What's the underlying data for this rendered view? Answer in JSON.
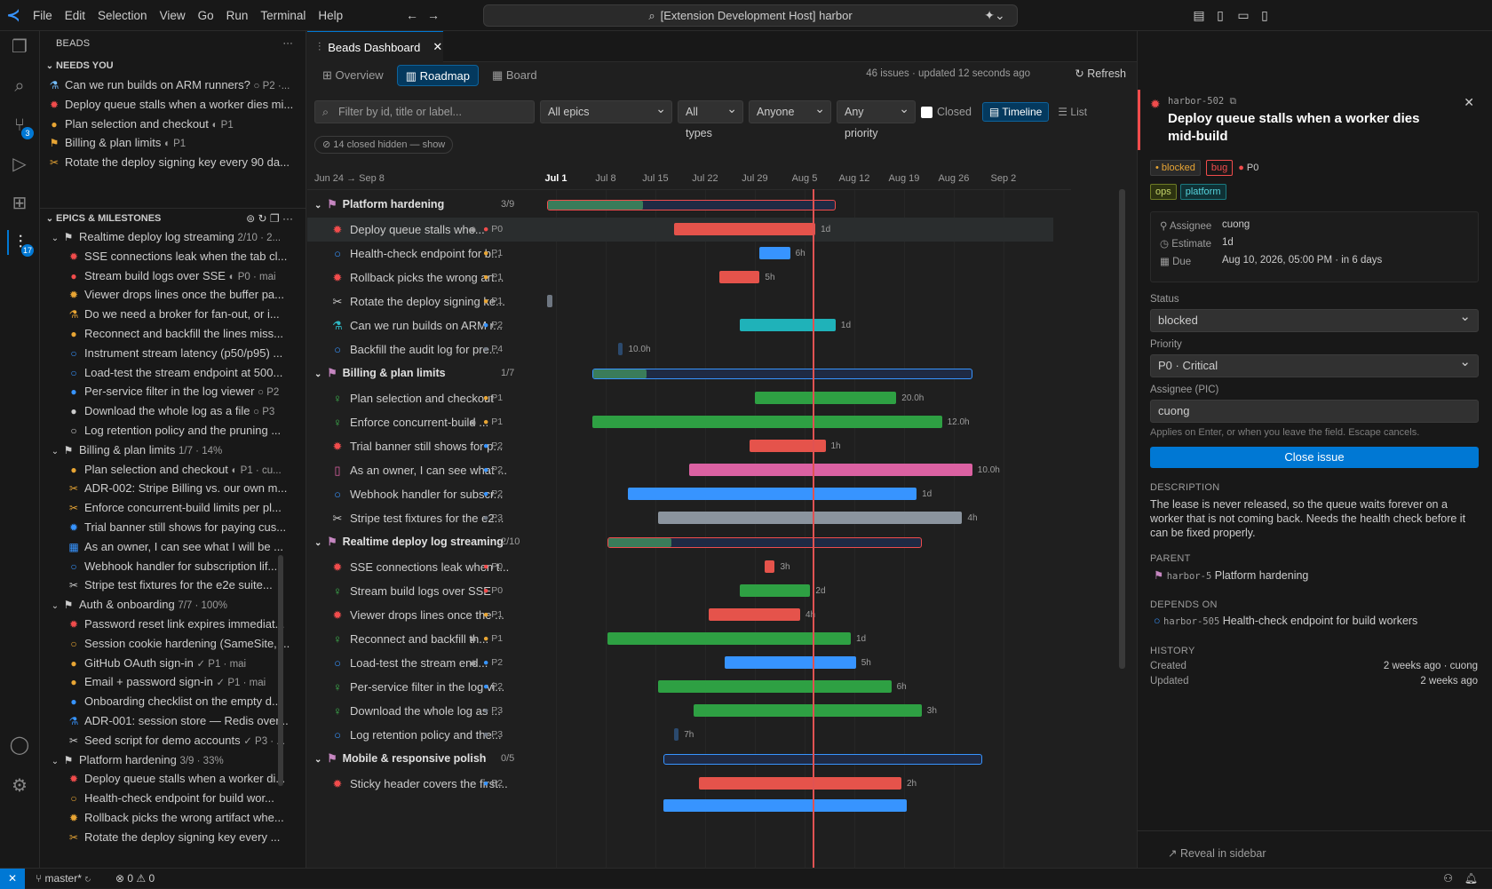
{
  "menu": [
    "File",
    "Edit",
    "Selection",
    "View",
    "Go",
    "Run",
    "Terminal",
    "Help"
  ],
  "command_center": "[Extension Development Host] harbor",
  "activity_badges": {
    "scm": "3",
    "beads": "17"
  },
  "sidebar": {
    "title": "BEADS",
    "needs_you_header": "NEEDS YOU",
    "needs_you": [
      {
        "icon": "⚗",
        "color": "#75beff",
        "text": "Can we run builds on ARM runners?",
        "meta": "○ P2 ·..."
      },
      {
        "icon": "✹",
        "color": "#f14c4c",
        "text": "Deploy queue stalls when a worker dies mi...",
        "meta": ""
      },
      {
        "icon": "●",
        "color": "#e8a534",
        "text": "Plan selection and checkout",
        "meta": "◐ P1"
      },
      {
        "icon": "⚑",
        "color": "#e8a534",
        "text": "Billing & plan limits",
        "meta": "◐ P1"
      },
      {
        "icon": "✂",
        "color": "#e8a534",
        "text": "Rotate the deploy signing key every 90 da...",
        "meta": ""
      }
    ],
    "epics_header": "EPICS & MILESTONES",
    "epics": [
      {
        "kind": "epic",
        "text": "Realtime deploy log streaming",
        "meta": "2/10 · 2..."
      },
      {
        "kind": "item",
        "icon": "✹",
        "color": "#f14c4c",
        "text": "SSE connections leak when the tab cl..."
      },
      {
        "kind": "item",
        "icon": "●",
        "color": "#f14c4c",
        "text": "Stream build logs over SSE",
        "meta": "◐ P0 · mai"
      },
      {
        "kind": "item",
        "icon": "✹",
        "color": "#e8a534",
        "text": "Viewer drops lines once the buffer pa..."
      },
      {
        "kind": "item",
        "icon": "⚗",
        "color": "#e8a534",
        "text": "Do we need a broker for fan-out, or i..."
      },
      {
        "kind": "item",
        "icon": "●",
        "color": "#e8a534",
        "text": "Reconnect and backfill the lines miss..."
      },
      {
        "kind": "item",
        "icon": "○",
        "color": "#3794ff",
        "text": "Instrument stream latency (p50/p95) ..."
      },
      {
        "kind": "item",
        "icon": "○",
        "color": "#3794ff",
        "text": "Load-test the stream endpoint at 500..."
      },
      {
        "kind": "item",
        "icon": "●",
        "color": "#3794ff",
        "text": "Per-service filter in the log viewer",
        "meta": "○ P2"
      },
      {
        "kind": "item",
        "icon": "●",
        "color": "#cccccc",
        "text": "Download the whole log as a file",
        "meta": "○ P3"
      },
      {
        "kind": "item",
        "icon": "○",
        "color": "#cccccc",
        "text": "Log retention policy and the pruning ..."
      },
      {
        "kind": "epic",
        "text": "Billing & plan limits",
        "meta": "1/7 · 14%"
      },
      {
        "kind": "item",
        "icon": "●",
        "color": "#e8a534",
        "text": "Plan selection and checkout",
        "meta": "◐ P1 · cu..."
      },
      {
        "kind": "item",
        "icon": "✂",
        "color": "#e8a534",
        "text": "ADR-002: Stripe Billing vs. our own m..."
      },
      {
        "kind": "item",
        "icon": "✂",
        "color": "#e8a534",
        "text": "Enforce concurrent-build limits per pl..."
      },
      {
        "kind": "item",
        "icon": "✹",
        "color": "#3794ff",
        "text": "Trial banner still shows for paying cus..."
      },
      {
        "kind": "item",
        "icon": "▦",
        "color": "#3794ff",
        "text": "As an owner, I can see what I will be ..."
      },
      {
        "kind": "item",
        "icon": "○",
        "color": "#3794ff",
        "text": "Webhook handler for subscription lif..."
      },
      {
        "kind": "item",
        "icon": "✂",
        "color": "#cccccc",
        "text": "Stripe test fixtures for the e2e suite..."
      },
      {
        "kind": "epic",
        "text": "Auth & onboarding",
        "meta": "7/7 · 100%"
      },
      {
        "kind": "item",
        "icon": "✹",
        "color": "#f14c4c",
        "text": "Password reset link expires immediat..."
      },
      {
        "kind": "item",
        "icon": "○",
        "color": "#e8a534",
        "text": "Session cookie hardening (SameSite, ..."
      },
      {
        "kind": "item",
        "icon": "●",
        "color": "#e8a534",
        "text": "GitHub OAuth sign-in",
        "meta": "✓ P1 · mai"
      },
      {
        "kind": "item",
        "icon": "●",
        "color": "#e8a534",
        "text": "Email + password sign-in",
        "meta": "✓ P1 · mai"
      },
      {
        "kind": "item",
        "icon": "●",
        "color": "#3794ff",
        "text": "Onboarding checklist on the empty d..."
      },
      {
        "kind": "item",
        "icon": "⚗",
        "color": "#3794ff",
        "text": "ADR-001: session store — Redis over..."
      },
      {
        "kind": "item",
        "icon": "✂",
        "color": "#cccccc",
        "text": "Seed script for demo accounts",
        "meta": "✓ P3 · ..."
      },
      {
        "kind": "epic",
        "text": "Platform hardening",
        "meta": "3/9 · 33%"
      },
      {
        "kind": "item",
        "icon": "✹",
        "color": "#f14c4c",
        "text": "Deploy queue stalls when a worker di..."
      },
      {
        "kind": "item",
        "icon": "○",
        "color": "#e8a534",
        "text": "Health-check endpoint for build wor..."
      },
      {
        "kind": "item",
        "icon": "✹",
        "color": "#e8a534",
        "text": "Rollback picks the wrong artifact whe..."
      },
      {
        "kind": "item",
        "icon": "✂",
        "color": "#e8a534",
        "text": "Rotate the deploy signing key every ..."
      }
    ]
  },
  "editor": {
    "tab_title": "Beads Dashboard",
    "views": [
      "Overview",
      "Roadmap",
      "Board"
    ],
    "active_view": "Roadmap",
    "summary": "46 issues · updated 12 seconds ago",
    "refresh": "Refresh",
    "filter_placeholder": "Filter by id, title or label...",
    "epic_filter": "All epics",
    "type_filter": "All types",
    "assignee_filter": "Anyone",
    "priority_filter": "Any priority",
    "closed_label": "Closed",
    "timeline_label": "Timeline",
    "list_label": "List",
    "hidden_chip": "14 closed hidden — show",
    "range_label": "Jun 24 → Sep 8"
  },
  "timeline": {
    "ticks": [
      "Jul 1",
      "Jul 8",
      "Jul 15",
      "Jul 22",
      "Jul 29",
      "Aug 5",
      "Aug 12",
      "Aug 19",
      "Aug 26",
      "Sep 2"
    ],
    "rows": [
      {
        "type": "epic",
        "label": "Platform hardening",
        "count": "3/9",
        "start": 0.0,
        "end": 0.57,
        "progress": 0.33,
        "color": "#f14c4c"
      },
      {
        "type": "task",
        "label": "Deploy queue stalls whe...",
        "lock": true,
        "prio": "P0",
        "pcolor": "#f14c4c",
        "icon": "✹",
        "icolor": "#f14c4c",
        "start": 0.25,
        "end": 0.53,
        "color": "#e5534b",
        "dur": "1d",
        "selected": true
      },
      {
        "type": "task",
        "label": "Health-check endpoint for b...",
        "prio": "P1",
        "pcolor": "#e8a534",
        "icon": "○",
        "icolor": "#3794ff",
        "start": 0.42,
        "end": 0.48,
        "color": "#3794ff",
        "dur": "6h"
      },
      {
        "type": "task",
        "label": "Rollback picks the wrong art...",
        "prio": "P1",
        "pcolor": "#e8a534",
        "icon": "✹",
        "icolor": "#f14c4c",
        "start": 0.34,
        "end": 0.42,
        "color": "#e5534b",
        "dur": "5h"
      },
      {
        "type": "task",
        "label": "Rotate the deploy signing ke...",
        "prio": "P1",
        "pcolor": "#e8a534",
        "icon": "✂",
        "icolor": "#cccccc",
        "start": 0.0,
        "end": 0.01,
        "color": "#6e7681",
        "dur": ""
      },
      {
        "type": "task",
        "label": "Can we run builds on ARM r...",
        "prio": "P2",
        "pcolor": "#3794ff",
        "icon": "⚗",
        "icolor": "#2fb8c4",
        "start": 0.38,
        "end": 0.57,
        "color": "#1fb2b9",
        "dur": "1d"
      },
      {
        "type": "task",
        "label": "Backfill the audit log for pre...",
        "prio": "P4",
        "pcolor": "#6e7681",
        "icon": "○",
        "icolor": "#3794ff",
        "start": 0.14,
        "end": 0.15,
        "color": "#2b4a6e",
        "dur": "10.0h"
      },
      {
        "type": "epic",
        "label": "Billing & plan limits",
        "count": "1/7",
        "start": 0.09,
        "end": 0.84,
        "progress": 0.14,
        "color": "#3794ff"
      },
      {
        "type": "task",
        "label": "Plan selection and checkout",
        "prio": "P1",
        "pcolor": "#e8a534",
        "icon": "♀",
        "icolor": "#3fb950",
        "start": 0.41,
        "end": 0.69,
        "color": "#2ea043",
        "dur": "20.0h"
      },
      {
        "type": "task",
        "label": "Enforce concurrent-build ...",
        "lock": true,
        "prio": "P1",
        "pcolor": "#e8a534",
        "icon": "♀",
        "icolor": "#3fb950",
        "start": 0.09,
        "end": 0.78,
        "color": "#2ea043",
        "dur": "12.0h"
      },
      {
        "type": "task",
        "label": "Trial banner still shows for p...",
        "prio": "P2",
        "pcolor": "#3794ff",
        "icon": "✹",
        "icolor": "#f14c4c",
        "start": 0.4,
        "end": 0.55,
        "color": "#e5534b",
        "dur": "1h"
      },
      {
        "type": "task",
        "label": "As an owner, I can see what ...",
        "prio": "P2",
        "pcolor": "#3794ff",
        "icon": "▯",
        "icolor": "#db61a2",
        "start": 0.28,
        "end": 0.84,
        "color": "#db61a2",
        "dur": "10.0h"
      },
      {
        "type": "task",
        "label": "Webhook handler for subscr...",
        "prio": "P2",
        "pcolor": "#3794ff",
        "icon": "○",
        "icolor": "#3794ff",
        "start": 0.16,
        "end": 0.73,
        "color": "#3794ff",
        "dur": "1d"
      },
      {
        "type": "task",
        "label": "Stripe test fixtures for the e2...",
        "prio": "P3",
        "pcolor": "#6e7681",
        "icon": "✂",
        "icolor": "#cccccc",
        "start": 0.22,
        "end": 0.82,
        "color": "#8b949e",
        "dur": "4h"
      },
      {
        "type": "epic",
        "label": "Realtime deploy log streaming",
        "count": "2/10",
        "start": 0.12,
        "end": 0.74,
        "progress": 0.2,
        "color": "#f14c4c"
      },
      {
        "type": "task",
        "label": "SSE connections leak when t...",
        "prio": "P0",
        "pcolor": "#f14c4c",
        "icon": "✹",
        "icolor": "#f14c4c",
        "start": 0.43,
        "end": 0.45,
        "color": "#e5534b",
        "dur": "3h"
      },
      {
        "type": "task",
        "label": "Stream build logs over SSE",
        "prio": "P0",
        "pcolor": "#f14c4c",
        "icon": "♀",
        "icolor": "#3fb950",
        "start": 0.38,
        "end": 0.52,
        "color": "#2ea043",
        "dur": "2d"
      },
      {
        "type": "task",
        "label": "Viewer drops lines once the ...",
        "prio": "P1",
        "pcolor": "#e8a534",
        "icon": "✹",
        "icolor": "#f14c4c",
        "start": 0.32,
        "end": 0.5,
        "color": "#e5534b",
        "dur": "4h"
      },
      {
        "type": "task",
        "label": "Reconnect and backfill th...",
        "lock": true,
        "prio": "P1",
        "pcolor": "#e8a534",
        "icon": "♀",
        "icolor": "#3fb950",
        "start": 0.12,
        "end": 0.6,
        "color": "#2ea043",
        "dur": "1d"
      },
      {
        "type": "task",
        "label": "Load-test the stream end...",
        "lock": true,
        "prio": "P2",
        "pcolor": "#3794ff",
        "icon": "○",
        "icolor": "#3794ff",
        "start": 0.35,
        "end": 0.61,
        "color": "#3794ff",
        "dur": "5h"
      },
      {
        "type": "task",
        "label": "Per-service filter in the log vi...",
        "prio": "P2",
        "pcolor": "#3794ff",
        "icon": "♀",
        "icolor": "#3fb950",
        "start": 0.22,
        "end": 0.68,
        "color": "#2ea043",
        "dur": "6h"
      },
      {
        "type": "task",
        "label": "Download the whole log as ...",
        "prio": "P3",
        "pcolor": "#6e7681",
        "icon": "♀",
        "icolor": "#3fb950",
        "start": 0.29,
        "end": 0.74,
        "color": "#2ea043",
        "dur": "3h"
      },
      {
        "type": "task",
        "label": "Log retention policy and the...",
        "prio": "P3",
        "pcolor": "#6e7681",
        "icon": "○",
        "icolor": "#3794ff",
        "start": 0.25,
        "end": 0.26,
        "color": "#2b4a6e",
        "dur": "7h"
      },
      {
        "type": "epic",
        "label": "Mobile & responsive polish",
        "count": "0/5",
        "start": 0.23,
        "end": 0.86,
        "progress": 0.0,
        "color": "#3794ff"
      },
      {
        "type": "task",
        "label": "Sticky header covers the first...",
        "prio": "P2",
        "pcolor": "#3794ff",
        "icon": "✹",
        "icolor": "#f14c4c",
        "start": 0.3,
        "end": 0.7,
        "color": "#e5534b",
        "dur": "2h"
      }
    ],
    "today_fraction": 0.525
  },
  "detail": {
    "id": "harbor-502",
    "title": "Deploy queue stalls when a worker dies mid-build",
    "status_badge": "blocked",
    "type_badge": "bug",
    "priority_badge": "P0",
    "labels": [
      "ops",
      "platform"
    ],
    "assignee_label": "Assignee",
    "assignee": "cuong",
    "estimate_label": "Estimate",
    "estimate": "1d",
    "due_label": "Due",
    "due": "Aug 10, 2026, 05:00 PM · in 6 days",
    "status_field": "Status",
    "status_value": "blocked",
    "priority_field": "Priority",
    "priority_value": "P0 · Critical",
    "pic_field": "Assignee (PIC)",
    "pic_value": "cuong",
    "pic_hint": "Applies on Enter, or when you leave the field. Escape cancels.",
    "close_button": "Close issue",
    "description_header": "DESCRIPTION",
    "description": "The lease is never released, so the queue waits forever on a worker that is not coming back. Needs the health check before it can be fixed properly.",
    "parent_header": "PARENT",
    "parent_id": "harbor-5",
    "parent_title": "Platform hardening",
    "depends_header": "DEPENDS ON",
    "depends_id": "harbor-505",
    "depends_title": "Health-check endpoint for build workers",
    "history_header": "HISTORY",
    "created_label": "Created",
    "created_value": "2 weeks ago · cuong",
    "updated_label": "Updated",
    "updated_value": "2 weeks ago",
    "reveal": "Reveal in sidebar"
  },
  "statusbar": {
    "branch": "master*",
    "problems": "⊗ 0 ⚠ 0"
  }
}
